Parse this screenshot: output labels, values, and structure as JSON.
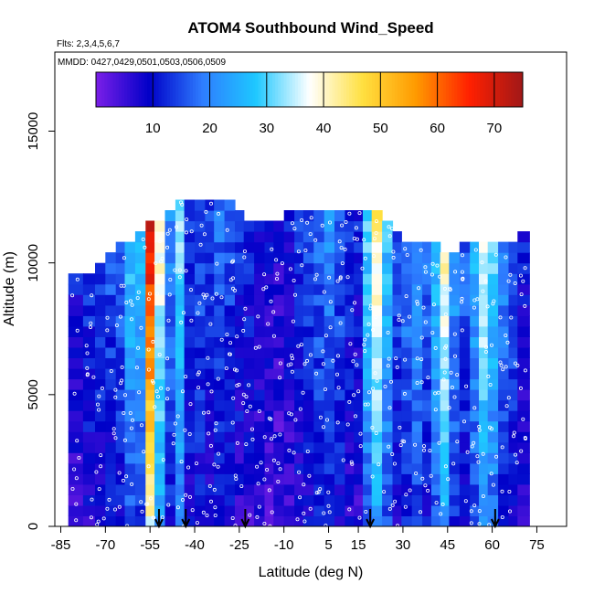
{
  "chart_data": {
    "type": "heatmap",
    "title": "ATOM4 Southbound Wind_Speed",
    "subtitle": "Flts: 2,3,4,5,6,7",
    "annotation": "MMDD: 0427,0429,0501,0503,0506,0509",
    "xlabel": "Latitude (deg N)",
    "ylabel": "Altitude (m)",
    "xlim": [
      -87,
      85
    ],
    "ylim": [
      0,
      18000
    ],
    "x_ticks": [
      -85,
      -70,
      -55,
      -40,
      -25,
      -10,
      5,
      15,
      30,
      45,
      60,
      75
    ],
    "y_ticks": [
      0,
      5000,
      10000,
      15000
    ],
    "colorbar": {
      "min": 0,
      "max": 75,
      "ticks": [
        10,
        20,
        30,
        40,
        50,
        60,
        70
      ],
      "colors": [
        "#7b1fe8",
        "#0000c8",
        "#2e7dff",
        "#1ec8ff",
        "#ffffff",
        "#ffe040",
        "#ff9a00",
        "#ff2000",
        "#a01818"
      ]
    },
    "sounding_latitudes": [
      -52,
      -43,
      -23,
      19,
      61
    ],
    "columns": [
      {
        "lat": -80,
        "top": 9500,
        "mean": 8
      },
      {
        "lat": -75,
        "top": 9500,
        "mean": 10
      },
      {
        "lat": -72,
        "top": 9800,
        "mean": 11
      },
      {
        "lat": -68,
        "top": 10200,
        "mean": 12
      },
      {
        "lat": -65,
        "top": 10500,
        "mean": 14
      },
      {
        "lat": -62,
        "top": 10800,
        "mean": 22
      },
      {
        "lat": -58,
        "top": 11200,
        "mean": 20
      },
      {
        "lat": -55,
        "top": 11300,
        "mean": 55
      },
      {
        "lat": -52,
        "top": 11500,
        "mean": 32
      },
      {
        "lat": -48,
        "top": 12000,
        "mean": 16
      },
      {
        "lat": -45,
        "top": 12400,
        "mean": 26
      },
      {
        "lat": -42,
        "top": 12400,
        "mean": 12
      },
      {
        "lat": -38,
        "top": 12400,
        "mean": 13
      },
      {
        "lat": -35,
        "top": 12400,
        "mean": 11
      },
      {
        "lat": -32,
        "top": 12400,
        "mean": 14
      },
      {
        "lat": -28,
        "top": 12200,
        "mean": 12
      },
      {
        "lat": -25,
        "top": 11800,
        "mean": 10
      },
      {
        "lat": -22,
        "top": 11500,
        "mean": 9
      },
      {
        "lat": -18,
        "top": 11300,
        "mean": 8
      },
      {
        "lat": -15,
        "top": 11500,
        "mean": 7
      },
      {
        "lat": -12,
        "top": 11600,
        "mean": 6
      },
      {
        "lat": -8,
        "top": 11800,
        "mean": 8
      },
      {
        "lat": -5,
        "top": 11800,
        "mean": 10
      },
      {
        "lat": -2,
        "top": 11800,
        "mean": 12
      },
      {
        "lat": 2,
        "top": 11900,
        "mean": 14
      },
      {
        "lat": 5,
        "top": 11900,
        "mean": 16
      },
      {
        "lat": 9,
        "top": 11900,
        "mean": 13
      },
      {
        "lat": 12,
        "top": 11900,
        "mean": 10
      },
      {
        "lat": 15,
        "top": 11900,
        "mean": 9
      },
      {
        "lat": 18,
        "top": 11900,
        "mean": 24
      },
      {
        "lat": 21,
        "top": 11900,
        "mean": 34
      },
      {
        "lat": 25,
        "top": 11600,
        "mean": 22
      },
      {
        "lat": 28,
        "top": 11000,
        "mean": 12
      },
      {
        "lat": 31,
        "top": 10800,
        "mean": 16
      },
      {
        "lat": 35,
        "top": 10800,
        "mean": 18
      },
      {
        "lat": 38,
        "top": 10800,
        "mean": 14
      },
      {
        "lat": 41,
        "top": 10500,
        "mean": 22
      },
      {
        "lat": 44,
        "top": 10400,
        "mean": 32
      },
      {
        "lat": 47,
        "top": 10400,
        "mean": 18
      },
      {
        "lat": 51,
        "top": 10600,
        "mean": 13
      },
      {
        "lat": 54,
        "top": 10600,
        "mean": 20
      },
      {
        "lat": 57,
        "top": 10600,
        "mean": 30
      },
      {
        "lat": 60,
        "top": 10600,
        "mean": 24
      },
      {
        "lat": 64,
        "top": 10700,
        "mean": 16
      },
      {
        "lat": 67,
        "top": 10800,
        "mean": 13
      },
      {
        "lat": 70,
        "top": 10900,
        "mean": 8
      }
    ]
  }
}
